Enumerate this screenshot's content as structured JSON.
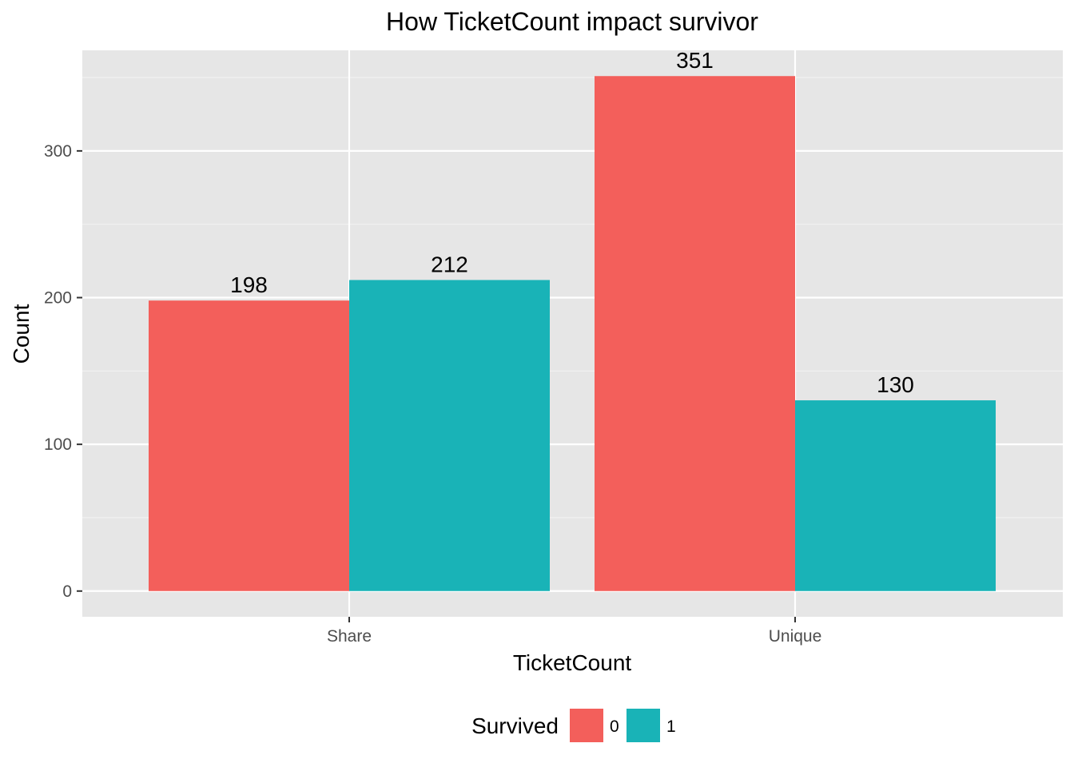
{
  "chart_data": {
    "type": "bar",
    "title": "How TicketCount impact survivor",
    "xlabel": "TicketCount",
    "ylabel": "Count",
    "categories": [
      "Share",
      "Unique"
    ],
    "series": [
      {
        "name": "0",
        "values": [
          198,
          351
        ],
        "color": "#F35F5B"
      },
      {
        "name": "1",
        "values": [
          212,
          130
        ],
        "color": "#19B3B7"
      }
    ],
    "ylim": [
      -17.55,
      368.55
    ],
    "yticks": [
      0,
      100,
      200,
      300
    ],
    "grid": true,
    "legend": {
      "title": "Survived",
      "position": "bottom",
      "entries": [
        "0",
        "1"
      ]
    },
    "data_labels": true
  },
  "colors": {
    "panel_background": "#E6E6E6",
    "grid_major": "#FFFFFF",
    "grid_minor": "#F2F2F2"
  }
}
